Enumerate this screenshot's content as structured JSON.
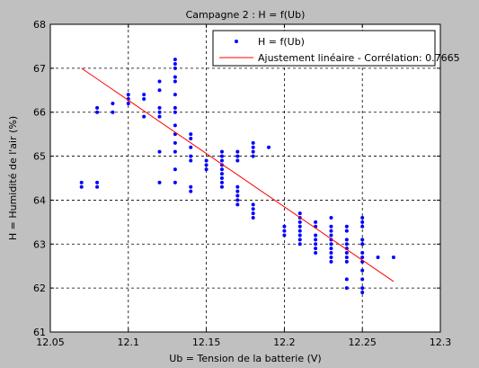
{
  "chart_data": {
    "type": "scatter",
    "title": "Campagne 2 : H = f(Ub)",
    "xlabel": "Ub = Tension de la batterie (V)",
    "ylabel": "H = Humidité de l'air (%)",
    "xlim": [
      12.05,
      12.3
    ],
    "ylim": [
      61,
      68
    ],
    "xticks": [
      "12.05",
      "12.1",
      "12.15",
      "12.2",
      "12.25",
      "12.3"
    ],
    "yticks": [
      "61",
      "62",
      "63",
      "64",
      "65",
      "66",
      "67",
      "68"
    ],
    "grid": true,
    "legend_position": "top-right",
    "series": [
      {
        "name": "H = f(Ub)",
        "kind": "points",
        "color": "#0000ff",
        "points": [
          [
            12.07,
            64.3
          ],
          [
            12.07,
            64.4
          ],
          [
            12.08,
            64.3
          ],
          [
            12.08,
            64.4
          ],
          [
            12.08,
            66.0
          ],
          [
            12.08,
            66.1
          ],
          [
            12.09,
            66.0
          ],
          [
            12.09,
            66.2
          ],
          [
            12.1,
            66.2
          ],
          [
            12.1,
            66.3
          ],
          [
            12.1,
            66.4
          ],
          [
            12.11,
            65.9
          ],
          [
            12.11,
            66.3
          ],
          [
            12.11,
            66.4
          ],
          [
            12.12,
            64.4
          ],
          [
            12.12,
            65.1
          ],
          [
            12.12,
            65.9
          ],
          [
            12.12,
            66.0
          ],
          [
            12.12,
            66.1
          ],
          [
            12.12,
            66.5
          ],
          [
            12.12,
            66.7
          ],
          [
            12.13,
            64.4
          ],
          [
            12.13,
            64.7
          ],
          [
            12.13,
            65.1
          ],
          [
            12.13,
            65.3
          ],
          [
            12.13,
            65.5
          ],
          [
            12.13,
            65.7
          ],
          [
            12.13,
            66.0
          ],
          [
            12.13,
            66.1
          ],
          [
            12.13,
            66.4
          ],
          [
            12.13,
            66.7
          ],
          [
            12.13,
            66.8
          ],
          [
            12.13,
            67.0
          ],
          [
            12.13,
            67.1
          ],
          [
            12.13,
            67.2
          ],
          [
            12.14,
            64.2
          ],
          [
            12.14,
            64.3
          ],
          [
            12.14,
            64.9
          ],
          [
            12.14,
            65.0
          ],
          [
            12.14,
            65.2
          ],
          [
            12.14,
            65.4
          ],
          [
            12.14,
            65.5
          ],
          [
            12.15,
            64.7
          ],
          [
            12.15,
            64.8
          ],
          [
            12.15,
            64.9
          ],
          [
            12.16,
            64.3
          ],
          [
            12.16,
            64.4
          ],
          [
            12.16,
            64.5
          ],
          [
            12.16,
            64.6
          ],
          [
            12.16,
            64.7
          ],
          [
            12.16,
            64.8
          ],
          [
            12.16,
            64.9
          ],
          [
            12.16,
            65.0
          ],
          [
            12.16,
            65.1
          ],
          [
            12.17,
            63.9
          ],
          [
            12.17,
            64.0
          ],
          [
            12.17,
            64.1
          ],
          [
            12.17,
            64.2
          ],
          [
            12.17,
            64.3
          ],
          [
            12.17,
            64.9
          ],
          [
            12.17,
            65.0
          ],
          [
            12.17,
            65.1
          ],
          [
            12.18,
            63.6
          ],
          [
            12.18,
            63.7
          ],
          [
            12.18,
            63.8
          ],
          [
            12.18,
            63.9
          ],
          [
            12.18,
            65.0
          ],
          [
            12.18,
            65.1
          ],
          [
            12.18,
            65.2
          ],
          [
            12.18,
            65.3
          ],
          [
            12.19,
            65.2
          ],
          [
            12.2,
            63.2
          ],
          [
            12.2,
            63.3
          ],
          [
            12.2,
            63.4
          ],
          [
            12.21,
            63.0
          ],
          [
            12.21,
            63.1
          ],
          [
            12.21,
            63.2
          ],
          [
            12.21,
            63.3
          ],
          [
            12.21,
            63.4
          ],
          [
            12.21,
            63.5
          ],
          [
            12.21,
            63.6
          ],
          [
            12.21,
            63.7
          ],
          [
            12.22,
            62.8
          ],
          [
            12.22,
            62.9
          ],
          [
            12.22,
            63.0
          ],
          [
            12.22,
            63.1
          ],
          [
            12.22,
            63.2
          ],
          [
            12.22,
            63.4
          ],
          [
            12.22,
            63.5
          ],
          [
            12.23,
            62.6
          ],
          [
            12.23,
            62.7
          ],
          [
            12.23,
            62.8
          ],
          [
            12.23,
            62.9
          ],
          [
            12.23,
            63.0
          ],
          [
            12.23,
            63.1
          ],
          [
            12.23,
            63.2
          ],
          [
            12.23,
            63.3
          ],
          [
            12.23,
            63.4
          ],
          [
            12.23,
            63.6
          ],
          [
            12.24,
            62.0
          ],
          [
            12.24,
            62.2
          ],
          [
            12.24,
            62.6
          ],
          [
            12.24,
            62.7
          ],
          [
            12.24,
            62.8
          ],
          [
            12.24,
            62.9
          ],
          [
            12.24,
            63.0
          ],
          [
            12.24,
            63.1
          ],
          [
            12.24,
            63.3
          ],
          [
            12.24,
            63.4
          ],
          [
            12.25,
            61.9
          ],
          [
            12.25,
            62.0
          ],
          [
            12.25,
            62.2
          ],
          [
            12.25,
            62.4
          ],
          [
            12.25,
            62.6
          ],
          [
            12.25,
            62.7
          ],
          [
            12.25,
            62.8
          ],
          [
            12.25,
            63.0
          ],
          [
            12.25,
            63.1
          ],
          [
            12.25,
            63.4
          ],
          [
            12.25,
            63.5
          ],
          [
            12.25,
            63.6
          ],
          [
            12.26,
            62.7
          ],
          [
            12.27,
            62.7
          ]
        ]
      },
      {
        "name": "Ajustement linéaire - Corrélation: 0.7665",
        "kind": "line",
        "color": "#ff0000",
        "points": [
          [
            12.07,
            67.0
          ],
          [
            12.27,
            62.15
          ]
        ]
      }
    ]
  }
}
